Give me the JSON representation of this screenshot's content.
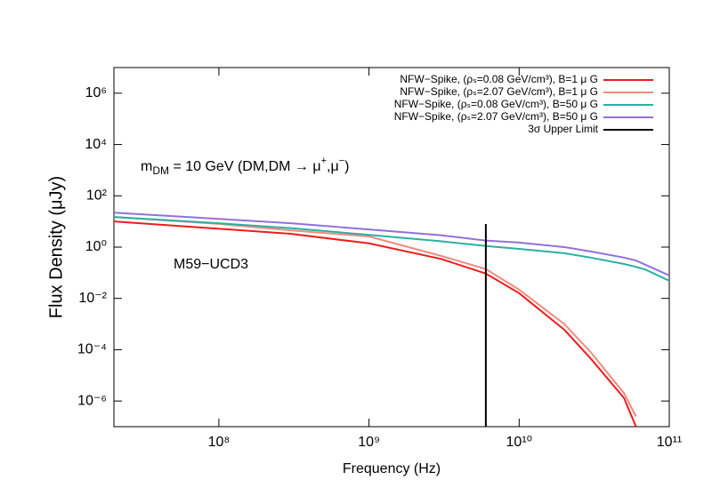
{
  "chart_data": {
    "type": "line",
    "xlabel": "Frequency (Hz)",
    "ylabel": "Flux Density (μJy)",
    "xscale": "log",
    "yscale": "log",
    "legend": "top-right",
    "xlim": [
      20000000.0,
      100000000000.0
    ],
    "ylim": [
      1e-07,
      10000000.0
    ],
    "xticks": [
      {
        "value": 100000000.0,
        "label": "10⁸"
      },
      {
        "value": 1000000000.0,
        "label": "10⁹"
      },
      {
        "value": 10000000000.0,
        "label": "10¹⁰"
      },
      {
        "value": 100000000000.0,
        "label": "10¹¹"
      }
    ],
    "yticks": [
      {
        "value": 1e-06,
        "label": "10⁻⁶"
      },
      {
        "value": 0.0001,
        "label": "10⁻⁴"
      },
      {
        "value": 0.01,
        "label": "10⁻²"
      },
      {
        "value": 1,
        "label": "10⁰"
      },
      {
        "value": 100,
        "label": "10²"
      },
      {
        "value": 10000,
        "label": "10⁴"
      },
      {
        "value": 1000000.0,
        "label": "10⁶"
      }
    ],
    "x": [
      20000000.0,
      100000000.0,
      300000000.0,
      1000000000.0,
      3000000000.0,
      6000000000.0,
      10000000000.0,
      20000000000.0,
      30000000000.0,
      50000000000.0,
      60000000000.0,
      70000000000.0,
      100000000000.0
    ],
    "series": [
      {
        "name": "NFW−Spike, (ρₛ=0.08 GeV/cm³), B=1 μ G",
        "color": "#ee1c1c",
        "values": [
          10,
          5.2,
          3.3,
          1.4,
          0.35,
          0.093,
          0.016,
          0.0006,
          4.5e-05,
          1.3e-06,
          1e-07,
          null,
          null
        ]
      },
      {
        "name": "NFW−Spike, (ρₛ=2.07 GeV/cm³), B=1 μ G",
        "color": "#f08a80",
        "values": [
          15,
          8,
          4.5,
          2.6,
          0.46,
          0.14,
          0.022,
          0.001,
          8e-05,
          2e-06,
          2.5e-07,
          null,
          null
        ]
      },
      {
        "name": "NFW−Spike, (ρₛ=0.08 GeV/cm³), B=50 μ G",
        "color": "#2ab0a4",
        "values": [
          15,
          8.5,
          5.5,
          3.0,
          1.7,
          1.1,
          0.85,
          0.58,
          0.39,
          0.22,
          0.17,
          0.13,
          0.049
        ]
      },
      {
        "name": "NFW−Spike, (ρₛ=2.07 GeV/cm³), B=50 μ G",
        "color": "#9370db",
        "values": [
          22,
          12.6,
          8.5,
          4.9,
          2.9,
          1.8,
          1.5,
          1.0,
          0.68,
          0.39,
          0.3,
          0.2,
          0.079
        ]
      }
    ],
    "limits": [
      {
        "name": "3σ Upper Limit",
        "color": "#000000",
        "x": 6000000000.0,
        "value": 8
      }
    ],
    "annotations": [
      {
        "parts": [
          "m",
          "DM",
          " = 10 GeV (DM,DM → μ",
          "+",
          ",μ",
          "−",
          ")"
        ]
      },
      {
        "text": "M59−UCD3"
      }
    ]
  }
}
